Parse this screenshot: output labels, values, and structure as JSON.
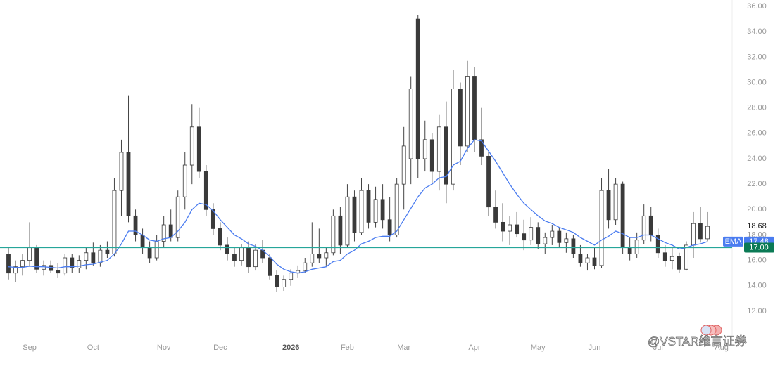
{
  "chart_data": {
    "type": "candlestick",
    "categories": [
      null,
      null,
      null,
      "Sep",
      null,
      null,
      null,
      null,
      null,
      null,
      null,
      null,
      "Oct",
      null,
      null,
      null,
      null,
      null,
      null,
      null,
      null,
      null,
      "Nov",
      null,
      null,
      null,
      null,
      null,
      null,
      null,
      "Dec",
      null,
      null,
      null,
      null,
      null,
      null,
      null,
      null,
      null,
      "2026",
      null,
      null,
      null,
      null,
      null,
      null,
      null,
      "Feb",
      null,
      null,
      null,
      null,
      null,
      null,
      null,
      "Mar",
      null,
      null,
      null,
      null,
      null,
      null,
      null,
      null,
      null,
      "Apr",
      null,
      null,
      null,
      null,
      null,
      null,
      null,
      null,
      "May",
      null,
      null,
      null,
      null,
      null,
      null,
      null,
      "Jun",
      null,
      null,
      null,
      null,
      null,
      null,
      null,
      null,
      "Jul",
      null,
      null,
      null,
      null,
      null,
      null,
      null,
      null,
      "Aug"
    ],
    "open": [
      16.5,
      15,
      15.5,
      16,
      17,
      15.3,
      15.6,
      15.2,
      15,
      16.2,
      15.4,
      16,
      16.6,
      15.8,
      16.8,
      16.5,
      21.5,
      24.5,
      19.5,
      18,
      17,
      16.2,
      17.5,
      18.8,
      17.8,
      21,
      23.5,
      26.5,
      23,
      20,
      18.5,
      17.2,
      16.5,
      16,
      17,
      15.5,
      16.8,
      16.2,
      14.8,
      13.9,
      14.5,
      15,
      15.2,
      15.8,
      16.5,
      16.2,
      16.6,
      19.5,
      17.2,
      21,
      18.2,
      21.5,
      19,
      20.8,
      19.2,
      18,
      22,
      24,
      35,
      24,
      25.5,
      23,
      26.5,
      22,
      29.5,
      25,
      30.5,
      25.5,
      24.2,
      20.2,
      19,
      18.3,
      18.8,
      18.1,
      17.6,
      18.6,
      17.3,
      17.8,
      18.3,
      17.4,
      17.7,
      16.5,
      15.8,
      16.2,
      15.6,
      21.5,
      19.2,
      22,
      17,
      16.5,
      17.6,
      19.5,
      18,
      16.6,
      16,
      16.3,
      15.3,
      17.2,
      18.9,
      17.7,
      null,
      null
    ],
    "high": [
      17,
      16,
      16.5,
      19,
      17.2,
      16,
      16,
      15.8,
      16.5,
      16.5,
      16.4,
      17,
      17.4,
      17.2,
      17.5,
      22.5,
      25.5,
      29,
      20,
      18.5,
      17.5,
      18,
      19.5,
      20,
      21.5,
      24.5,
      28.3,
      28,
      23.5,
      20.5,
      19,
      17.8,
      17,
      17.3,
      17.5,
      17.3,
      17.6,
      16.5,
      15.2,
      14.8,
      15.3,
      15.6,
      16.2,
      19,
      18.5,
      17,
      20,
      20.2,
      22,
      21.5,
      22.5,
      22,
      21.8,
      22,
      21,
      22.5,
      26.5,
      30.5,
      35.3,
      27,
      26,
      27.5,
      28.5,
      31,
      30,
      31.7,
      31.2,
      28,
      24.5,
      21.5,
      20.5,
      19.5,
      19.8,
      19.2,
      19.4,
      19,
      18.2,
      18.8,
      18.6,
      18.2,
      18,
      17.2,
      16.5,
      17,
      22.5,
      23.2,
      22.5,
      22.2,
      17.8,
      18.2,
      20.4,
      20.2,
      18.5,
      17.2,
      17,
      16.6,
      17.5,
      19.8,
      20.2,
      19.8,
      null,
      null
    ],
    "low": [
      14.5,
      14.3,
      14.8,
      15.5,
      15,
      14.8,
      15,
      14.6,
      14.8,
      15,
      15,
      15.3,
      15.6,
      15.5,
      16.2,
      16.3,
      19.5,
      19,
      17.5,
      16.5,
      15.8,
      16,
      17,
      17.5,
      17.5,
      20,
      22,
      22.5,
      19.5,
      18,
      16.8,
      16,
      15.5,
      15.6,
      15,
      15.2,
      15.8,
      14.5,
      13.5,
      13.6,
      14,
      14.6,
      15,
      15.5,
      15.8,
      15.6,
      16.4,
      16.5,
      17,
      17.5,
      18,
      18.5,
      18.6,
      18.5,
      17.5,
      17.8,
      20,
      22,
      22.5,
      23,
      22,
      21.5,
      20.5,
      21.5,
      23.5,
      24.5,
      24.5,
      23.5,
      19.5,
      18.5,
      17.5,
      17.2,
      17.8,
      16.8,
      17.2,
      16.9,
      16.5,
      17.2,
      17,
      16.6,
      16.2,
      15.5,
      15.2,
      15.3,
      15.4,
      18.5,
      18.8,
      16.5,
      16,
      16.2,
      17.3,
      17.5,
      16.2,
      15.5,
      15.3,
      15,
      15.2,
      16.2,
      17.4,
      17.5,
      null,
      null
    ],
    "close": [
      15,
      15.5,
      16,
      17,
      15.3,
      15.6,
      15.2,
      15,
      16.2,
      15.4,
      16,
      16.6,
      15.8,
      16.8,
      16.5,
      21.5,
      24.5,
      19.5,
      18,
      17,
      16.2,
      17.5,
      18.8,
      17.8,
      21,
      23.5,
      26.5,
      23,
      20,
      18.5,
      17.2,
      16.5,
      16,
      17,
      15.5,
      16.8,
      16.2,
      14.8,
      13.9,
      14.5,
      15,
      15.2,
      15.8,
      16.5,
      16.2,
      16.6,
      19.5,
      17.2,
      21,
      18.2,
      21.5,
      19,
      20.8,
      19.2,
      18,
      22,
      25,
      29.5,
      24,
      25.5,
      23,
      26.5,
      22,
      29.5,
      25,
      30.5,
      25.5,
      24.2,
      20.2,
      19,
      18.3,
      18.8,
      18.1,
      17.6,
      18.6,
      17.3,
      17.8,
      18.3,
      17.4,
      17.7,
      16.5,
      15.8,
      16.2,
      15.6,
      21.5,
      19.2,
      22,
      17,
      16.5,
      17.6,
      19.5,
      18,
      16.6,
      16,
      16.3,
      15.3,
      17.2,
      18.9,
      17.7,
      18.68,
      null,
      null
    ],
    "up_color": "#ffffff",
    "down_color": "#3a3a3a",
    "ema": {
      "name": "EMA",
      "color": "#4a7cf0",
      "values": [
        15.5,
        15.45,
        15.45,
        15.55,
        15.5,
        15.5,
        15.45,
        15.4,
        15.5,
        15.5,
        15.55,
        15.65,
        15.7,
        15.85,
        16,
        16.5,
        17.3,
        18.3,
        18.3,
        18,
        17.6,
        17.5,
        17.7,
        17.8,
        18.3,
        19,
        20,
        20.5,
        20.4,
        19.9,
        19.2,
        18.6,
        18,
        17.7,
        17.3,
        17.1,
        16.8,
        16.3,
        15.7,
        15.3,
        15.1,
        15,
        15.1,
        15.3,
        15.4,
        15.5,
        15.9,
        16,
        16.5,
        16.8,
        17.3,
        17.5,
        17.8,
        17.9,
        17.9,
        18.3,
        19.2,
        20.1,
        21,
        21.7,
        22,
        22.5,
        22.6,
        23.5,
        23.8,
        24.8,
        25.5,
        25.4,
        24.6,
        23.8,
        22.9,
        22,
        21.2,
        20.5,
        20,
        19.5,
        19.1,
        18.9,
        18.6,
        18.4,
        18.2,
        17.8,
        17.5,
        17.2,
        17.6,
        17.9,
        18.3,
        18.1,
        17.8,
        17.8,
        18,
        18,
        17.7,
        17.4,
        17.2,
        16.9,
        17,
        17.2,
        17.3,
        17.48,
        null,
        null
      ]
    },
    "hline": {
      "value": 17,
      "label": "17.00",
      "color": "#26a69a"
    },
    "ylim": [
      9.95,
      36.5
    ],
    "yticks": [
      {
        "value": 12,
        "label": "12.00"
      },
      {
        "value": 14,
        "label": "14.00"
      },
      {
        "value": 16,
        "label": "16.00"
      },
      {
        "value": 18,
        "label": "18.00"
      },
      {
        "value": 20,
        "label": "20.00"
      },
      {
        "value": 22,
        "label": "22.00"
      },
      {
        "value": 24,
        "label": "24.00"
      },
      {
        "value": 26,
        "label": "26.00"
      },
      {
        "value": 28,
        "label": "28.00"
      },
      {
        "value": 30,
        "label": "30.00"
      },
      {
        "value": 32,
        "label": "32.00"
      },
      {
        "value": 34,
        "label": "34.00"
      },
      {
        "value": 36,
        "label": "36.00"
      }
    ],
    "watermark": "@VSTAR维言证券"
  }
}
